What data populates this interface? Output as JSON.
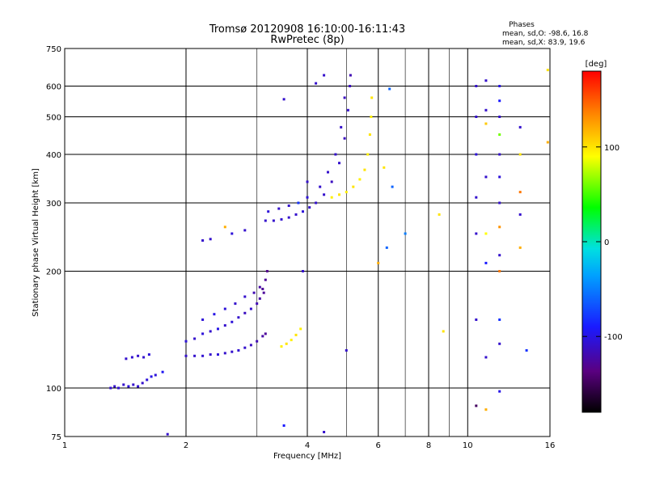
{
  "chart_data": {
    "type": "scatter",
    "title": "Tromsø 20120908 16:10:00-16:11:43",
    "subtitle": "RwPretec (8p)",
    "xlabel": "Frequency [MHz]",
    "ylabel": "Stationary phase Virtual Height [km]",
    "xscale": "log",
    "yscale": "log",
    "xlim": [
      1,
      16
    ],
    "ylim": [
      75,
      750
    ],
    "xticks": [
      1,
      2,
      4,
      6,
      8,
      10,
      16
    ],
    "xtick_labels": [
      "1",
      "2",
      "4",
      "6",
      "8",
      "10",
      "16"
    ],
    "xgrid": [
      2,
      4,
      6,
      8,
      10
    ],
    "xminor": [
      3,
      5,
      7,
      9
    ],
    "yticks": [
      75,
      100,
      200,
      300,
      400,
      500,
      600,
      750
    ],
    "ytick_labels": [
      "75",
      "100",
      "200",
      "300",
      "400",
      "500",
      "600",
      "750"
    ],
    "ygrid": [
      100,
      200,
      300,
      400,
      500,
      600
    ],
    "grid": true,
    "phase_box": {
      "title": "Phases",
      "line1": "mean, sd,O: -98.6, 16.8",
      "line2": "mean, sd,X: 83.9, 19.6"
    },
    "colorbar": {
      "label": "[deg]",
      "range": [
        -180,
        180
      ],
      "ticks": [
        100,
        0,
        -100
      ],
      "tick_labels": [
        "100",
        "0",
        "-100"
      ]
    },
    "points": [
      {
        "f": 1.3,
        "h": 100,
        "p": -110
      },
      {
        "f": 1.33,
        "h": 101,
        "p": -110
      },
      {
        "f": 1.36,
        "h": 100,
        "p": -108
      },
      {
        "f": 1.4,
        "h": 102,
        "p": -110
      },
      {
        "f": 1.44,
        "h": 101,
        "p": -105
      },
      {
        "f": 1.48,
        "h": 102,
        "p": -110
      },
      {
        "f": 1.52,
        "h": 101,
        "p": -108
      },
      {
        "f": 1.56,
        "h": 103,
        "p": -110
      },
      {
        "f": 1.6,
        "h": 105,
        "p": -105
      },
      {
        "f": 1.64,
        "h": 107,
        "p": -100
      },
      {
        "f": 1.68,
        "h": 108,
        "p": -105
      },
      {
        "f": 1.75,
        "h": 110,
        "p": -95
      },
      {
        "f": 1.42,
        "h": 119,
        "p": -110
      },
      {
        "f": 1.47,
        "h": 120,
        "p": -108
      },
      {
        "f": 1.52,
        "h": 121,
        "p": -110
      },
      {
        "f": 1.57,
        "h": 120,
        "p": -110
      },
      {
        "f": 1.62,
        "h": 122,
        "p": -105
      },
      {
        "f": 2.0,
        "h": 121,
        "p": -110
      },
      {
        "f": 2.1,
        "h": 121,
        "p": -110
      },
      {
        "f": 2.2,
        "h": 121,
        "p": -108
      },
      {
        "f": 2.3,
        "h": 122,
        "p": -110
      },
      {
        "f": 2.4,
        "h": 122,
        "p": -105
      },
      {
        "f": 2.5,
        "h": 123,
        "p": -110
      },
      {
        "f": 2.6,
        "h": 124,
        "p": -110
      },
      {
        "f": 2.7,
        "h": 125,
        "p": -108
      },
      {
        "f": 2.8,
        "h": 127,
        "p": -110
      },
      {
        "f": 2.9,
        "h": 129,
        "p": -115
      },
      {
        "f": 3.0,
        "h": 132,
        "p": -120
      },
      {
        "f": 3.1,
        "h": 136,
        "p": -125
      },
      {
        "f": 3.15,
        "h": 138,
        "p": -130
      },
      {
        "f": 2.0,
        "h": 132,
        "p": -105
      },
      {
        "f": 2.1,
        "h": 134,
        "p": -110
      },
      {
        "f": 2.2,
        "h": 138,
        "p": -105
      },
      {
        "f": 2.3,
        "h": 140,
        "p": -110
      },
      {
        "f": 2.4,
        "h": 142,
        "p": -100
      },
      {
        "f": 2.5,
        "h": 145,
        "p": -110
      },
      {
        "f": 2.6,
        "h": 148,
        "p": -105
      },
      {
        "f": 2.7,
        "h": 152,
        "p": -110
      },
      {
        "f": 2.8,
        "h": 156,
        "p": -115
      },
      {
        "f": 2.9,
        "h": 160,
        "p": -110
      },
      {
        "f": 3.0,
        "h": 165,
        "p": -120
      },
      {
        "f": 3.05,
        "h": 170,
        "p": -125
      },
      {
        "f": 3.1,
        "h": 180,
        "p": -130
      },
      {
        "f": 3.15,
        "h": 190,
        "p": -130
      },
      {
        "f": 3.18,
        "h": 200,
        "p": -135
      },
      {
        "f": 2.2,
        "h": 150,
        "p": -105
      },
      {
        "f": 2.35,
        "h": 155,
        "p": -100
      },
      {
        "f": 2.5,
        "h": 160,
        "p": -105
      },
      {
        "f": 2.65,
        "h": 165,
        "p": -110
      },
      {
        "f": 2.8,
        "h": 172,
        "p": -110
      },
      {
        "f": 2.95,
        "h": 176,
        "p": -120
      },
      {
        "f": 3.05,
        "h": 182,
        "p": -125
      },
      {
        "f": 3.12,
        "h": 176,
        "p": -130
      },
      {
        "f": 3.45,
        "h": 128,
        "p": 95
      },
      {
        "f": 3.55,
        "h": 130,
        "p": 100
      },
      {
        "f": 3.65,
        "h": 133,
        "p": 95
      },
      {
        "f": 3.75,
        "h": 137,
        "p": 100
      },
      {
        "f": 3.85,
        "h": 142,
        "p": 95
      },
      {
        "f": 2.2,
        "h": 240,
        "p": -110
      },
      {
        "f": 2.3,
        "h": 242,
        "p": -110
      },
      {
        "f": 2.6,
        "h": 250,
        "p": -105
      },
      {
        "f": 2.8,
        "h": 255,
        "p": -110
      },
      {
        "f": 3.15,
        "h": 270,
        "p": -110
      },
      {
        "f": 3.3,
        "h": 270,
        "p": -110
      },
      {
        "f": 3.45,
        "h": 272,
        "p": -108
      },
      {
        "f": 3.6,
        "h": 275,
        "p": -110
      },
      {
        "f": 3.75,
        "h": 280,
        "p": -110
      },
      {
        "f": 3.9,
        "h": 285,
        "p": -105
      },
      {
        "f": 4.05,
        "h": 292,
        "p": -110
      },
      {
        "f": 4.2,
        "h": 300,
        "p": -110
      },
      {
        "f": 4.4,
        "h": 315,
        "p": -110
      },
      {
        "f": 4.6,
        "h": 340,
        "p": -115
      },
      {
        "f": 4.8,
        "h": 380,
        "p": -110
      },
      {
        "f": 4.95,
        "h": 440,
        "p": -115
      },
      {
        "f": 5.05,
        "h": 520,
        "p": -110
      },
      {
        "f": 5.1,
        "h": 600,
        "p": -115
      },
      {
        "f": 5.12,
        "h": 640,
        "p": -120
      },
      {
        "f": 3.2,
        "h": 285,
        "p": -105
      },
      {
        "f": 3.4,
        "h": 290,
        "p": -110
      },
      {
        "f": 3.6,
        "h": 295,
        "p": -110
      },
      {
        "f": 4.0,
        "h": 310,
        "p": -105
      },
      {
        "f": 4.3,
        "h": 330,
        "p": -110
      },
      {
        "f": 4.5,
        "h": 360,
        "p": -110
      },
      {
        "f": 4.7,
        "h": 400,
        "p": -110
      },
      {
        "f": 4.85,
        "h": 470,
        "p": -110
      },
      {
        "f": 4.95,
        "h": 560,
        "p": -115
      },
      {
        "f": 4.2,
        "h": 610,
        "p": -110
      },
      {
        "f": 4.4,
        "h": 640,
        "p": -110
      },
      {
        "f": 3.5,
        "h": 555,
        "p": -110
      },
      {
        "f": 4.6,
        "h": 310,
        "p": 95
      },
      {
        "f": 4.8,
        "h": 315,
        "p": 100
      },
      {
        "f": 5.0,
        "h": 320,
        "p": 95
      },
      {
        "f": 5.2,
        "h": 330,
        "p": 100
      },
      {
        "f": 5.4,
        "h": 345,
        "p": 95
      },
      {
        "f": 5.55,
        "h": 365,
        "p": 100
      },
      {
        "f": 5.65,
        "h": 400,
        "p": 95
      },
      {
        "f": 5.72,
        "h": 450,
        "p": 100
      },
      {
        "f": 5.76,
        "h": 500,
        "p": 95
      },
      {
        "f": 5.78,
        "h": 560,
        "p": 100
      },
      {
        "f": 10.5,
        "h": 600,
        "p": -110
      },
      {
        "f": 10.5,
        "h": 500,
        "p": -110
      },
      {
        "f": 10.5,
        "h": 400,
        "p": -105
      },
      {
        "f": 10.5,
        "h": 310,
        "p": -110
      },
      {
        "f": 10.5,
        "h": 250,
        "p": -110
      },
      {
        "f": 10.5,
        "h": 150,
        "p": -110
      },
      {
        "f": 10.5,
        "h": 90,
        "p": -150
      },
      {
        "f": 12.0,
        "h": 600,
        "p": -100
      },
      {
        "f": 12.0,
        "h": 550,
        "p": -90
      },
      {
        "f": 12.0,
        "h": 500,
        "p": -110
      },
      {
        "f": 12.0,
        "h": 450,
        "p": 60
      },
      {
        "f": 12.0,
        "h": 400,
        "p": -110
      },
      {
        "f": 12.0,
        "h": 350,
        "p": -105
      },
      {
        "f": 12.0,
        "h": 300,
        "p": -110
      },
      {
        "f": 12.0,
        "h": 260,
        "p": 130
      },
      {
        "f": 12.0,
        "h": 220,
        "p": -110
      },
      {
        "f": 12.0,
        "h": 200,
        "p": 140
      },
      {
        "f": 12.0,
        "h": 150,
        "p": -80
      },
      {
        "f": 12.0,
        "h": 130,
        "p": -110
      },
      {
        "f": 12.0,
        "h": 98,
        "p": -100
      },
      {
        "f": 11.1,
        "h": 620,
        "p": -110
      },
      {
        "f": 11.1,
        "h": 520,
        "p": -110
      },
      {
        "f": 11.1,
        "h": 480,
        "p": 110
      },
      {
        "f": 11.1,
        "h": 350,
        "p": -110
      },
      {
        "f": 11.1,
        "h": 250,
        "p": 90
      },
      {
        "f": 11.1,
        "h": 210,
        "p": -90
      },
      {
        "f": 11.1,
        "h": 120,
        "p": -110
      },
      {
        "f": 11.1,
        "h": 88,
        "p": 120
      },
      {
        "f": 13.5,
        "h": 470,
        "p": -110
      },
      {
        "f": 13.5,
        "h": 400,
        "p": 100
      },
      {
        "f": 13.5,
        "h": 320,
        "p": 140
      },
      {
        "f": 13.5,
        "h": 280,
        "p": -110
      },
      {
        "f": 13.5,
        "h": 230,
        "p": 120
      },
      {
        "f": 14.0,
        "h": 125,
        "p": -80
      },
      {
        "f": 15.8,
        "h": 660,
        "p": 100
      },
      {
        "f": 15.8,
        "h": 430,
        "p": 120
      },
      {
        "f": 6.4,
        "h": 590,
        "p": -60
      },
      {
        "f": 6.5,
        "h": 330,
        "p": -60
      },
      {
        "f": 6.2,
        "h": 370,
        "p": 100
      },
      {
        "f": 6.3,
        "h": 230,
        "p": -60
      },
      {
        "f": 6.0,
        "h": 210,
        "p": 120
      },
      {
        "f": 7.0,
        "h": 250,
        "p": -50
      },
      {
        "f": 8.5,
        "h": 280,
        "p": 100
      },
      {
        "f": 8.7,
        "h": 140,
        "p": 100
      },
      {
        "f": 5.0,
        "h": 125,
        "p": -110
      },
      {
        "f": 3.8,
        "h": 300,
        "p": -80
      },
      {
        "f": 4.0,
        "h": 340,
        "p": -110
      },
      {
        "f": 3.9,
        "h": 200,
        "p": -110
      },
      {
        "f": 3.5,
        "h": 80,
        "p": -90
      },
      {
        "f": 4.4,
        "h": 77,
        "p": -110
      },
      {
        "f": 2.5,
        "h": 260,
        "p": 120
      },
      {
        "f": 1.8,
        "h": 76,
        "p": -110
      }
    ]
  }
}
